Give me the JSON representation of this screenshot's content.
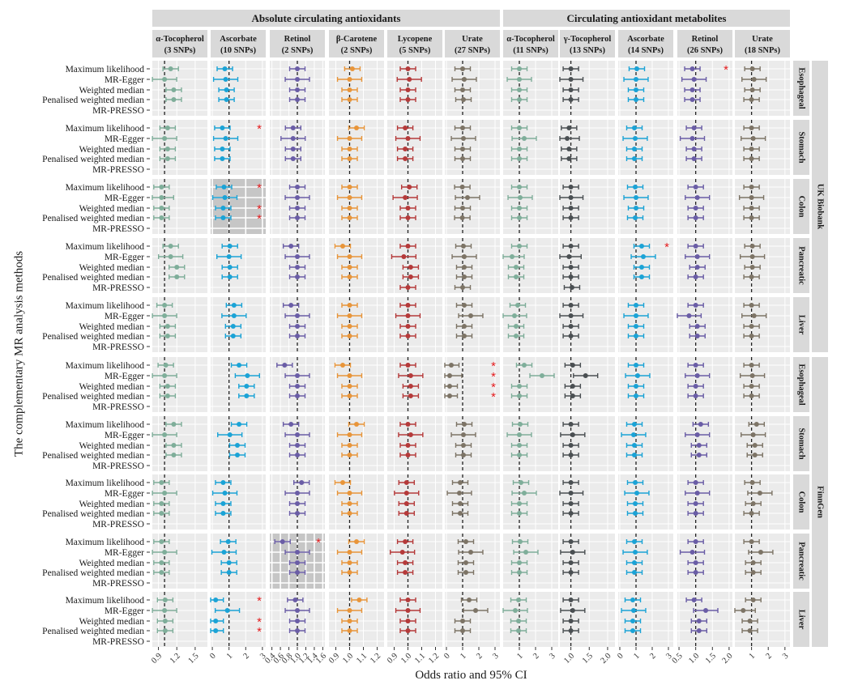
{
  "chart_data": {
    "type": "forest",
    "xlabel": "Odds ratio and 95% CI",
    "ylabel": "The complementary MR analysis methods",
    "groups": [
      {
        "label": "Absolute circulating antioxidants",
        "span": [
          0,
          5
        ]
      },
      {
        "label": "Circulating antioxidant metabolites",
        "span": [
          6,
          10
        ]
      }
    ],
    "cohorts": [
      {
        "label": "UK Biobank",
        "span": [
          0,
          4
        ]
      },
      {
        "label": "FinnGen",
        "span": [
          5,
          9
        ]
      }
    ],
    "methods": [
      "Maximum likelihood",
      "MR-Egger",
      "Weighted median",
      "Penalised weighted median",
      "MR-PRESSO"
    ],
    "outcomes": [
      "Esophageal",
      "Stomach",
      "Colon",
      "Pancreatic",
      "Liver",
      "Esophageal",
      "Stomach",
      "Colon",
      "Pancreatic",
      "Liver"
    ],
    "exposures": [
      {
        "name": "α-Tocopherol",
        "snps": "(3 SNPs)",
        "color": "#7fae9a",
        "range": [
          0.8,
          1.7
        ],
        "ticks": [
          "0.9",
          "1.2",
          "1.5"
        ],
        "tickvals": [
          0.9,
          1.2,
          1.5
        ]
      },
      {
        "name": "Ascorbate",
        "snps": "(10 SNPs)",
        "color": "#1ba3d6",
        "range": [
          -0.1,
          3.2
        ],
        "ticks": [
          "0",
          "1",
          "2",
          "3"
        ],
        "tickvals": [
          0,
          1,
          2,
          3
        ]
      },
      {
        "name": "Retinol",
        "snps": "(2 SNPs)",
        "color": "#6a5da6",
        "range": [
          0.35,
          1.65
        ],
        "ticks": [
          "0.4",
          "0.6",
          "0.8",
          "1.0",
          "1.2",
          "1.4",
          "1.6"
        ],
        "tickvals": [
          0.4,
          0.6,
          0.8,
          1.0,
          1.2,
          1.4,
          1.6
        ]
      },
      {
        "name": "β-Carotene",
        "snps": "(2 SNPs)",
        "color": "#e8953a",
        "range": [
          0.85,
          1.25
        ],
        "ticks": [
          "0.9",
          "1.0",
          "1.1",
          "1.2"
        ],
        "tickvals": [
          0.9,
          1.0,
          1.1,
          1.2
        ]
      },
      {
        "name": "Lycopene",
        "snps": "(5 SNPs)",
        "color": "#b53a3a",
        "range": [
          0.85,
          1.25
        ],
        "ticks": [
          "0.9",
          "1.0",
          "1.1",
          "1.2"
        ],
        "tickvals": [
          0.9,
          1.0,
          1.1,
          1.2
        ]
      },
      {
        "name": "Urate",
        "snps": "(27 SNPs)",
        "color": "#7d7466",
        "range": [
          -0.1,
          3.3
        ],
        "ticks": [
          "0",
          "1",
          "2",
          "3"
        ],
        "tickvals": [
          0,
          1,
          2,
          3
        ]
      },
      {
        "name": "α-Tocopherol",
        "snps": "(11 SNPs)",
        "color": "#7fae9a",
        "range": [
          0,
          3.4
        ],
        "ticks": [
          "1",
          "2",
          "3"
        ],
        "tickvals": [
          1,
          2,
          3
        ]
      },
      {
        "name": "γ-Tocopherol",
        "snps": "(13 SNPs)",
        "color": "#4a4f52",
        "range": [
          0.7,
          2.2
        ],
        "ticks": [
          "1.0",
          "1.5",
          "2.0"
        ],
        "tickvals": [
          1.0,
          1.5,
          2.0
        ]
      },
      {
        "name": "Ascorbate",
        "snps": "(14 SNPs)",
        "color": "#1ba3d6",
        "range": [
          -0.1,
          3.3
        ],
        "ticks": [
          "0",
          "1",
          "2",
          "3"
        ],
        "tickvals": [
          0,
          1,
          2,
          3
        ]
      },
      {
        "name": "Retinol",
        "snps": "(26 SNPs)",
        "color": "#6a5da6",
        "range": [
          0.45,
          2.1
        ],
        "ticks": [
          "0.5",
          "1.0",
          "1.5",
          "2.0"
        ],
        "tickvals": [
          0.5,
          1.0,
          1.5,
          2.0
        ]
      },
      {
        "name": "Urate",
        "snps": "(18 SNPs)",
        "color": "#7d7466",
        "range": [
          0,
          3.3
        ],
        "ticks": [
          "1",
          "2",
          "3"
        ],
        "tickvals": [
          1,
          2,
          3
        ]
      }
    ],
    "refline": 1,
    "highlighted_panels": [
      {
        "row": 2,
        "col": 1
      },
      {
        "row": 8,
        "col": 2
      }
    ],
    "significance_marks": [
      {
        "row": 0,
        "col": 9,
        "method": 0
      },
      {
        "row": 1,
        "col": 1,
        "method": 0
      },
      {
        "row": 2,
        "col": 1,
        "method": 0
      },
      {
        "row": 2,
        "col": 1,
        "method": 2
      },
      {
        "row": 2,
        "col": 1,
        "method": 3
      },
      {
        "row": 3,
        "col": 8,
        "method": 0
      },
      {
        "row": 5,
        "col": 5,
        "method": 0
      },
      {
        "row": 5,
        "col": 5,
        "method": 1
      },
      {
        "row": 5,
        "col": 5,
        "method": 2
      },
      {
        "row": 5,
        "col": 5,
        "method": 3
      },
      {
        "row": 8,
        "col": 2,
        "method": 0
      },
      {
        "row": 9,
        "col": 1,
        "method": 0
      },
      {
        "row": 9,
        "col": 1,
        "method": 2
      },
      {
        "row": 9,
        "col": 1,
        "method": 3
      }
    ],
    "star_symbol": "*",
    "est": [
      [
        [
          1.1,
          1,
          1.15,
          1.15,
          null
        ],
        [
          0.75,
          0.8,
          0.85,
          0.85,
          null
        ],
        [
          1,
          1,
          1,
          1,
          null
        ],
        [
          1.02,
          1,
          1,
          1,
          null
        ],
        [
          1,
          1.01,
          1,
          1,
          null
        ],
        [
          1,
          1.1,
          1,
          1.05,
          null
        ],
        [
          1,
          1,
          1,
          1,
          null
        ],
        [
          1,
          1,
          1,
          1,
          null
        ],
        [
          1.05,
          1,
          1,
          1,
          null
        ],
        [
          0.9,
          0.95,
          0.9,
          0.9,
          null
        ],
        [
          1.05,
          1.15,
          1.05,
          1,
          null
        ]
      ],
      [
        [
          1.05,
          1,
          1.05,
          1.05,
          null
        ],
        [
          0.6,
          0.8,
          0.6,
          0.6,
          null
        ],
        [
          0.9,
          0.9,
          0.9,
          0.9,
          null
        ],
        [
          1.05,
          1,
          1,
          1,
          null
        ],
        [
          0.98,
          1,
          0.98,
          0.98,
          null
        ],
        [
          1,
          1.05,
          1,
          1,
          null
        ],
        [
          1,
          1.3,
          1,
          1,
          null
        ],
        [
          0.95,
          0.9,
          0.95,
          0.95,
          null
        ],
        [
          0.9,
          0.95,
          0.9,
          0.9,
          null
        ],
        [
          0.95,
          0.9,
          0.95,
          0.95,
          null
        ],
        [
          1,
          1.1,
          1,
          1,
          null
        ]
      ],
      [
        [
          0.95,
          0.95,
          0.95,
          0.95,
          null
        ],
        [
          0.7,
          0.75,
          0.65,
          0.65,
          null
        ],
        [
          1,
          1,
          1,
          1,
          null
        ],
        [
          1,
          1,
          1,
          1,
          null
        ],
        [
          1.01,
          0.98,
          1,
          1,
          null
        ],
        [
          0.98,
          1.3,
          1,
          0.98,
          null
        ],
        [
          1,
          1.05,
          1,
          1,
          null
        ],
        [
          1,
          1,
          1,
          1,
          null
        ],
        [
          0.95,
          1,
          1,
          0.95,
          null
        ],
        [
          1,
          1.05,
          1,
          1,
          null
        ],
        [
          1,
          1,
          1,
          1,
          null
        ]
      ],
      [
        [
          1.1,
          1.1,
          1.2,
          1.2,
          null
        ],
        [
          1.05,
          1,
          1.05,
          1.05,
          null
        ],
        [
          0.85,
          1,
          1,
          1,
          null
        ],
        [
          0.95,
          1,
          1,
          1,
          null
        ],
        [
          1,
          0.97,
          1.02,
          1.02,
          1
        ],
        [
          1.05,
          1.1,
          1.1,
          1.1,
          1
        ],
        [
          1,
          0.55,
          0.8,
          0.8,
          null
        ],
        [
          1,
          0.95,
          1,
          1,
          1.03
        ],
        [
          1.35,
          1.45,
          1.35,
          1.35,
          null
        ],
        [
          1,
          1.05,
          1.05,
          1,
          null
        ],
        [
          1.05,
          1.05,
          1.05,
          1,
          null
        ]
      ],
      [
        [
          1,
          1,
          1.05,
          1.05,
          null
        ],
        [
          1.3,
          1.3,
          1.25,
          1.25,
          null
        ],
        [
          0.85,
          1,
          1,
          1,
          null
        ],
        [
          1,
          1,
          1,
          1,
          null
        ],
        [
          1,
          1,
          1,
          1,
          null
        ],
        [
          1.1,
          1.5,
          1.1,
          1.1,
          null
        ],
        [
          0.9,
          0.7,
          0.8,
          0.8,
          null
        ],
        [
          1,
          1,
          1,
          1,
          null
        ],
        [
          1,
          1,
          1,
          1,
          null
        ],
        [
          1,
          0.8,
          1.05,
          1.05,
          null
        ],
        [
          1,
          1.15,
          1,
          1,
          null
        ]
      ],
      [
        [
          1.02,
          1,
          1.05,
          1.05,
          null
        ],
        [
          1.6,
          2.1,
          2.05,
          2.05,
          null
        ],
        [
          0.7,
          1,
          1,
          1,
          null
        ],
        [
          0.95,
          1,
          1,
          1,
          null
        ],
        [
          1,
          1.02,
          1.02,
          1.02,
          null
        ],
        [
          0.3,
          0.2,
          0.2,
          0.2,
          null
        ],
        [
          1.3,
          2.4,
          1,
          1,
          null
        ],
        [
          1.05,
          1.4,
          1.05,
          1.05,
          null
        ],
        [
          1,
          1.1,
          1,
          1,
          null
        ],
        [
          1,
          1.05,
          1,
          1,
          null
        ],
        [
          1,
          1.05,
          1,
          1,
          null
        ]
      ],
      [
        [
          1.15,
          1,
          1.15,
          1.15,
          null
        ],
        [
          1.6,
          1.05,
          1.5,
          1.5,
          null
        ],
        [
          0.85,
          1,
          1,
          1,
          null
        ],
        [
          1.05,
          1,
          1,
          1,
          null
        ],
        [
          1,
          1.02,
          1,
          1,
          null
        ],
        [
          1.1,
          1.05,
          1.05,
          1.05,
          null
        ],
        [
          1.05,
          1,
          1,
          1,
          null
        ],
        [
          1,
          1.05,
          1,
          1,
          null
        ],
        [
          0.9,
          0.85,
          0.9,
          0.9,
          null
        ],
        [
          1.15,
          1.05,
          1.1,
          1.1,
          null
        ],
        [
          1.3,
          1.1,
          1.2,
          1.2,
          null
        ]
      ],
      [
        [
          0.95,
          1,
          0.95,
          0.95,
          null
        ],
        [
          0.65,
          0.75,
          0.65,
          0.65,
          null
        ],
        [
          1.1,
          1,
          1,
          1,
          null
        ],
        [
          0.95,
          1,
          1,
          1,
          null
        ],
        [
          0.99,
          0.99,
          0.99,
          0.99,
          null
        ],
        [
          0.85,
          0.8,
          0.85,
          0.85,
          null
        ],
        [
          1.1,
          1.3,
          1,
          1,
          null
        ],
        [
          1,
          1,
          1,
          1,
          null
        ],
        [
          0.95,
          1.05,
          0.95,
          0.95,
          null
        ],
        [
          1,
          1.05,
          1,
          1,
          null
        ],
        [
          1.05,
          1.5,
          1.1,
          1,
          null
        ]
      ],
      [
        [
          0.95,
          1,
          0.95,
          0.95,
          null
        ],
        [
          0.95,
          0.7,
          1,
          1,
          null
        ],
        [
          0.65,
          1,
          1,
          1,
          null
        ],
        [
          1.05,
          1,
          1,
          1,
          null
        ],
        [
          0.98,
          0.96,
          0.98,
          0.98,
          null
        ],
        [
          1.2,
          1.5,
          1.2,
          1.2,
          null
        ],
        [
          1.05,
          1.4,
          1,
          1,
          null
        ],
        [
          1,
          1.05,
          1,
          1,
          null
        ],
        [
          0.9,
          0.95,
          0.9,
          0.9,
          null
        ],
        [
          1,
          0.9,
          1,
          1,
          null
        ],
        [
          1,
          1.55,
          1.1,
          1.1,
          null
        ]
      ],
      [
        [
          1.01,
          1,
          1.01,
          1.01,
          null
        ],
        [
          0.2,
          0.9,
          0.2,
          0.2,
          null
        ],
        [
          0.95,
          1,
          1,
          1,
          null
        ],
        [
          1.07,
          1,
          1,
          1,
          null
        ],
        [
          1,
          1,
          1,
          1,
          null
        ],
        [
          1.4,
          1.8,
          1,
          1,
          null
        ],
        [
          0.95,
          0.75,
          0.95,
          0.95,
          null
        ],
        [
          1,
          1.05,
          1,
          1,
          null
        ],
        [
          0.8,
          0.85,
          0.8,
          0.8,
          null
        ],
        [
          0.95,
          1.3,
          1.1,
          1.1,
          null
        ],
        [
          1.1,
          0.5,
          0.9,
          0.9,
          null
        ]
      ]
    ]
  }
}
